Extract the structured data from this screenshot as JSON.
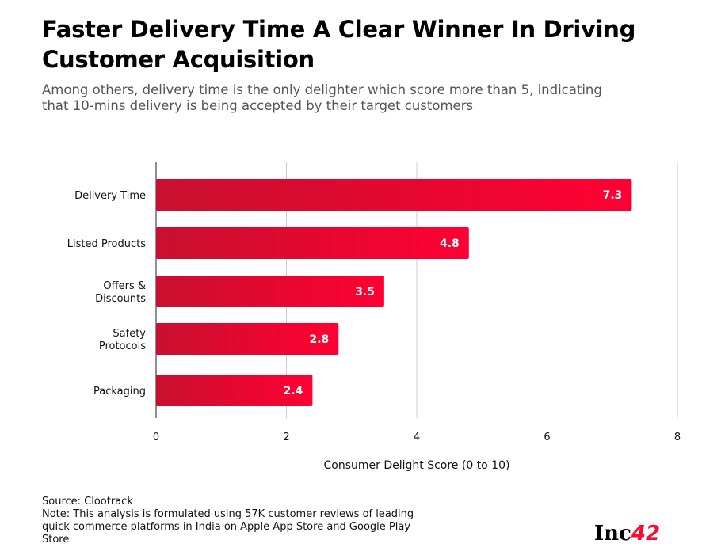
{
  "title": "Faster Delivery Time A Clear Winner In Driving Customer Acquisition",
  "subtitle": "Among others, delivery time is the only delighter which score more than 5, indicating that 10-mins delivery is being accepted by their target customers",
  "source": "Source: Clootrack",
  "note": "Note: This analysis is formulated using 57K customer reviews of leading quick commerce platforms in India on Apple App Store and Google Play Store",
  "logo": {
    "text": "Inc",
    "accent": "42"
  },
  "colors": {
    "bar_start": "#c8102e",
    "bar_end": "#ff0033"
  },
  "chart_data": {
    "type": "bar",
    "orientation": "horizontal",
    "categories": [
      [
        "Delivery Time"
      ],
      [
        "Listed Products"
      ],
      [
        "Offers &",
        "Discounts"
      ],
      [
        "Safety",
        "Protocols"
      ],
      [
        "Packaging"
      ]
    ],
    "values": [
      7.3,
      4.8,
      3.5,
      2.8,
      2.4
    ],
    "value_labels": [
      "7.3",
      "4.8",
      "3.5",
      "2.8",
      "2.4"
    ],
    "xlabel": "Consumer Delight Score (0 to 10)",
    "xlim": [
      0,
      8
    ],
    "xticks": [
      "0",
      "2",
      "4",
      "6",
      "8"
    ],
    "grid": true
  }
}
